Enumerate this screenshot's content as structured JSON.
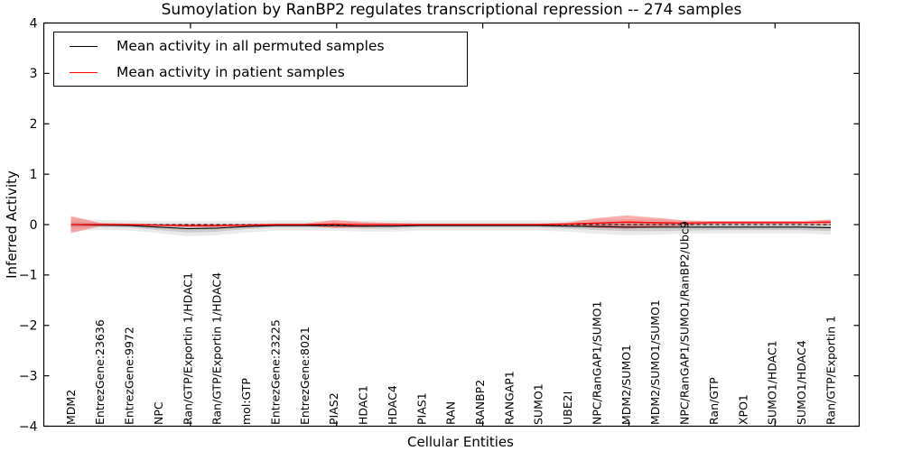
{
  "figure": {
    "title": "Sumoylation by RanBP2 regulates transcriptional repression -- 274 samples",
    "xlabel": "Cellular Entities",
    "ylabel": "Inferred Activity"
  },
  "legend": {
    "entries": [
      {
        "label": "Mean activity in all permuted samples",
        "color": "#000000"
      },
      {
        "label": "Mean activity in patient samples",
        "color": "#ff0000"
      }
    ]
  },
  "chart_data": {
    "type": "line",
    "title": "Sumoylation by RanBP2 regulates transcriptional repression -- 274 samples",
    "xlabel": "Cellular Entities",
    "ylabel": "Inferred Activity",
    "ylim": [
      -4,
      4
    ],
    "ytick_labels": [
      "4",
      "3",
      "2",
      "1",
      "0",
      "−1",
      "−2",
      "−3",
      "−4"
    ],
    "ytick_values": [
      4,
      3,
      2,
      1,
      0,
      -1,
      -2,
      -3,
      -4
    ],
    "xtick_ordinals": [
      5,
      10,
      15,
      20,
      25
    ],
    "grid": false,
    "legend_position": "upper left",
    "baseline": 0,
    "categories": [
      "MDM2",
      "EntrezGene:23636",
      "EntrezGene:9972",
      "NPC",
      "Ran/GTP/Exportin 1/HDAC1",
      "Ran/GTP/Exportin 1/HDAC4",
      "mol:GTP",
      "EntrezGene:23225",
      "EntrezGene:8021",
      "PIAS2",
      "HDAC1",
      "HDAC4",
      "PIAS1",
      "RAN",
      "RANBP2",
      "RANGAP1",
      "SUMO1",
      "UBE2I",
      "NPC/RanGAP1/SUMO1",
      "MDM2/SUMO1",
      "MDM2/SUMO1/SUMO1",
      "NPC/RanGAP1/SUMO1/RanBP2/Ubc9",
      "Ran/GTP",
      "XPO1",
      "SUMO1/HDAC1",
      "SUMO1/HDAC4",
      "Ran/GTP/Exportin 1"
    ],
    "series": [
      {
        "name": "Mean activity in all permuted samples",
        "color": "#000000",
        "style": "solid",
        "values": [
          0.0,
          -0.01,
          -0.02,
          -0.05,
          -0.08,
          -0.07,
          -0.04,
          -0.02,
          -0.02,
          -0.02,
          -0.03,
          -0.03,
          -0.02,
          -0.02,
          -0.02,
          -0.02,
          -0.02,
          -0.03,
          -0.04,
          -0.05,
          -0.05,
          -0.05,
          -0.05,
          -0.05,
          -0.05,
          -0.05,
          -0.06
        ]
      },
      {
        "name": "Mean activity in patient samples",
        "color": "#ff0000",
        "style": "solid",
        "values": [
          0.0,
          0.0,
          0.0,
          -0.01,
          -0.02,
          -0.02,
          -0.01,
          0.0,
          0.0,
          0.01,
          0.0,
          0.0,
          0.0,
          0.0,
          0.0,
          0.0,
          0.0,
          0.01,
          0.03,
          0.05,
          0.04,
          0.03,
          0.04,
          0.04,
          0.04,
          0.04,
          0.05
        ]
      }
    ],
    "bands": [
      {
        "name": "permuted-std-outer",
        "color": "#000000",
        "opacity": 0.08,
        "center_series": 0,
        "halfwidth": [
          0.12,
          0.1,
          0.1,
          0.12,
          0.15,
          0.14,
          0.12,
          0.1,
          0.1,
          0.1,
          0.11,
          0.11,
          0.1,
          0.1,
          0.1,
          0.1,
          0.1,
          0.11,
          0.14,
          0.16,
          0.15,
          0.13,
          0.12,
          0.12,
          0.12,
          0.12,
          0.14
        ]
      },
      {
        "name": "permuted-std-inner",
        "color": "#000000",
        "opacity": 0.13,
        "center_series": 0,
        "halfwidth": [
          0.05,
          0.04,
          0.04,
          0.06,
          0.08,
          0.07,
          0.05,
          0.04,
          0.04,
          0.04,
          0.05,
          0.05,
          0.04,
          0.04,
          0.04,
          0.04,
          0.04,
          0.05,
          0.07,
          0.08,
          0.08,
          0.07,
          0.06,
          0.06,
          0.06,
          0.06,
          0.07
        ]
      },
      {
        "name": "patient-std",
        "color": "#ff0000",
        "opacity": 0.32,
        "center_series": 1,
        "halfwidth": [
          0.17,
          0.03,
          0.02,
          0.02,
          0.03,
          0.03,
          0.02,
          0.02,
          0.02,
          0.08,
          0.05,
          0.03,
          0.02,
          0.02,
          0.02,
          0.02,
          0.02,
          0.03,
          0.1,
          0.13,
          0.1,
          0.05,
          0.03,
          0.03,
          0.03,
          0.03,
          0.05
        ]
      }
    ]
  }
}
